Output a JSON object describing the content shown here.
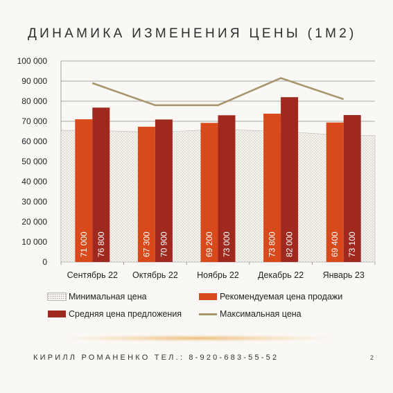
{
  "title": "ДИНАМИКА ИЗМЕНЕНИЯ ЦЕНЫ (1М2)",
  "footer": "КИРИЛЛ РОМАНЕНКО ТЕЛ.: 8-920-683-55-52",
  "page_number": "2",
  "colors": {
    "recommended": "#d84a1b",
    "average": "#a0291f",
    "max_line": "#a9956b",
    "min_area_fill": "#f8f5ef",
    "min_area_dots": "#8a8a8a"
  },
  "chart_data": {
    "type": "bar",
    "categories": [
      "Сентябрь 22",
      "Октябрь 22",
      "Ноябрь 22",
      "Декабрь 22",
      "Январь 23"
    ],
    "y_ticks": [
      "0",
      "10 000",
      "20 000",
      "30 000",
      "40 000",
      "50 000",
      "60 000",
      "70 000",
      "80 000",
      "90 000",
      "100 000"
    ],
    "ylim": [
      0,
      100000
    ],
    "grid": true,
    "legend_position": "bottom",
    "series": [
      {
        "name": "Минимальная цена",
        "kind": "area",
        "values": [
          65500,
          64500,
          66000,
          65000,
          63000
        ]
      },
      {
        "name": "Рекомендуемая цена продажи",
        "kind": "bar",
        "values": [
          71000,
          67300,
          69200,
          73800,
          69400
        ],
        "labels": [
          "71 000",
          "67 300",
          "69 200",
          "73 800",
          "69 400"
        ]
      },
      {
        "name": "Средняя цена предложения",
        "kind": "bar",
        "values": [
          76800,
          70900,
          73000,
          82000,
          73100
        ],
        "labels": [
          "76 800",
          "70 900",
          "73 000",
          "82 000",
          "73 100"
        ]
      },
      {
        "name": "Максимальная цена",
        "kind": "line",
        "values": [
          89000,
          78000,
          78000,
          91500,
          81000
        ]
      }
    ]
  }
}
